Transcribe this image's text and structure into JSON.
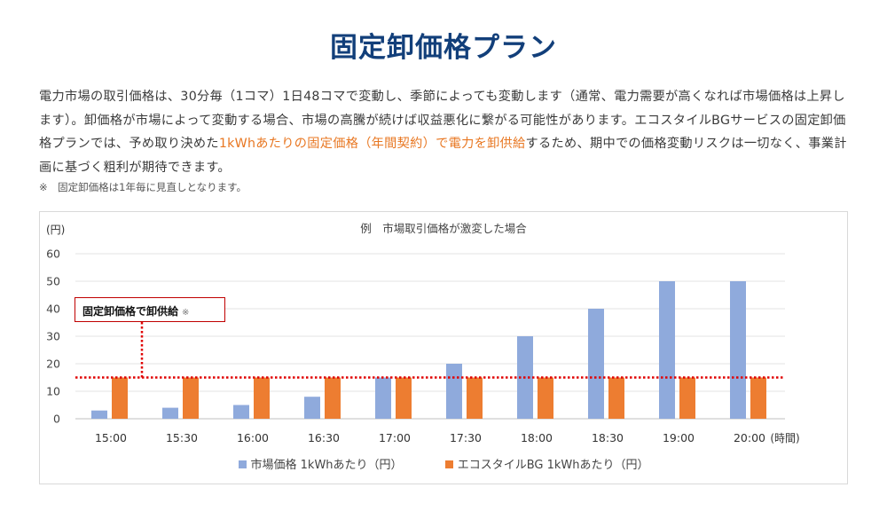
{
  "page": {
    "title": "固定卸価格プラン",
    "intro_part1": "電力市場の取引価格は、30分毎（1コマ）1日48コマで変動し、季節によっても変動します（通常、電力需要が高くなれば市場価格は上昇します）。卸価格が市場によって変動する場合、市場の高騰が続けば収益悪化に繋がる可能性があります。エコスタイルBGサービスの固定卸価格プランでは、予め取り決めた",
    "intro_highlight": "1kWhあたりの固定価格（年間契約）で電力を卸供給",
    "intro_part2": "するため、期中での価格変動リスクは一切なく、事業計画に基づく粗利が期待できます。",
    "note": "※　固定卸価格は1年毎に見直しとなります。"
  },
  "callout": {
    "label": "固定卸価格で卸供給",
    "mark": "※"
  },
  "colors": {
    "market": "#8faadc",
    "fixed": "#ed7d31",
    "fixed_line": "#e00000",
    "title": "#123f7a",
    "highlight": "#e87722"
  },
  "chart_data": {
    "type": "bar",
    "title": "例　市場取引価格が激変した場合",
    "ylabel": "(円)",
    "xlabel": "(時間)",
    "ylim": [
      0,
      60
    ],
    "yticks": [
      0,
      10,
      20,
      30,
      40,
      50,
      60
    ],
    "categories": [
      "15:00",
      "15:30",
      "16:00",
      "16:30",
      "17:00",
      "17:30",
      "18:00",
      "18:30",
      "19:00",
      "20:00"
    ],
    "series": [
      {
        "name": "市場価格 1kWhあたり（円）",
        "values": [
          3,
          4,
          5,
          8,
          15,
          20,
          30,
          40,
          50,
          50
        ]
      },
      {
        "name": "エコスタイルBG 1kWhあたり（円）",
        "values": [
          15,
          15,
          15,
          15,
          15,
          15,
          15,
          15,
          15,
          15
        ]
      }
    ],
    "fixed_price_line": 15,
    "grid": true,
    "legend": "bottom"
  }
}
